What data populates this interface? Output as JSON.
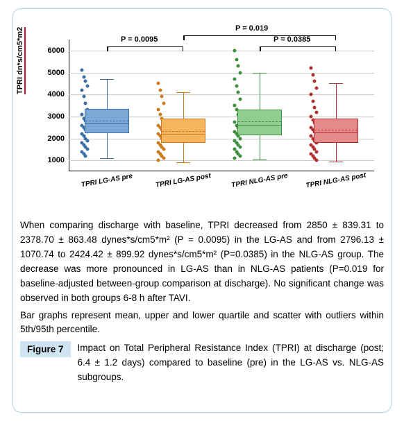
{
  "chart": {
    "type": "boxplot",
    "y_axis": {
      "label": "TPRI dn*s/cm5*m2",
      "min": 500,
      "max": 6500,
      "ticks": [
        1000,
        2000,
        3000,
        4000,
        5000,
        6000
      ],
      "grid_color": "#cccccc"
    },
    "p_values": [
      {
        "label": "P = 0.0095",
        "span": [
          0,
          1
        ],
        "y": 6200
      },
      {
        "label": "P = 0.019",
        "span": [
          1,
          3
        ],
        "y": 6700
      },
      {
        "label": "P = 0.0385",
        "span": [
          2,
          3
        ],
        "y": 6200
      }
    ],
    "series": [
      {
        "label": "TPRI LG-AS pre",
        "fill": "#7ba9d6",
        "stroke": "#3a6ea5",
        "q1": 2250,
        "median": 2700,
        "mean": 2850,
        "q3": 3350,
        "whisker_low": 1100,
        "whisker_high": 4700,
        "scatter": [
          5100,
          4800,
          4600,
          4400,
          4200,
          3900,
          3600,
          3300,
          3100,
          2900,
          2800,
          2700,
          2600,
          2500,
          2400,
          2300,
          2200,
          2100,
          2000,
          1900,
          1800,
          1700,
          1600,
          1500,
          1400,
          1300,
          1200
        ]
      },
      {
        "label": "TPRI LG-AS post",
        "fill": "#f5b45e",
        "stroke": "#cc7a1f",
        "q1": 1800,
        "median": 2250,
        "mean": 2378,
        "q3": 2900,
        "whisker_low": 900,
        "whisker_high": 4100,
        "scatter": [
          4500,
          4200,
          3900,
          3600,
          3300,
          3100,
          2900,
          2750,
          2600,
          2500,
          2400,
          2300,
          2200,
          2100,
          2000,
          1900,
          1800,
          1700,
          1600,
          1500,
          1400,
          1300,
          1200,
          1100,
          1000
        ]
      },
      {
        "label": "TPRI NLG-AS pre",
        "fill": "#8fce8f",
        "stroke": "#3d8f3d",
        "q1": 2150,
        "median": 2650,
        "mean": 2796,
        "q3": 3300,
        "whisker_low": 1050,
        "whisker_high": 5000,
        "scatter": [
          6000,
          5600,
          5300,
          5000,
          4700,
          4400,
          4100,
          3800,
          3500,
          3300,
          3100,
          2900,
          2750,
          2600,
          2500,
          2400,
          2300,
          2200,
          2100,
          2000,
          1900,
          1800,
          1700,
          1600,
          1500,
          1400,
          1300,
          1200,
          1100
        ]
      },
      {
        "label": "TPRI NLG-AS post",
        "fill": "#e58a8a",
        "stroke": "#b03030",
        "q1": 1800,
        "median": 2300,
        "mean": 2424,
        "q3": 2900,
        "whisker_low": 950,
        "whisker_high": 4500,
        "scatter": [
          5200,
          4900,
          4600,
          4300,
          4000,
          3700,
          3400,
          3200,
          3000,
          2850,
          2700,
          2600,
          2500,
          2400,
          2300,
          2200,
          2100,
          2000,
          1900,
          1800,
          1700,
          1600,
          1500,
          1400,
          1300,
          1200,
          1100,
          1000
        ]
      }
    ]
  },
  "caption": {
    "body1": "When comparing discharge with baseline, TPRI decreased from 2850 ± 839.31 to 2378.70 ± 863.48 dynes*s/cm5*m² (P = 0.0095) in the LG-AS and from 2796.13 ± 1070.74 to 2424.42 ± 899.92 dynes*s/cm5*m²  (P=0.0385) in the NLG-AS group. The decrease was more pronounced in LG-AS than in NLG-AS patients (P=0.019 for baseline-adjusted between-group comparison at discharge). No significant change was observed in both groups 6-8 h after TAVI.",
    "body2": "Bar graphs represent mean, upper and lower quartile and scatter with outliers within 5th/95th percentile.",
    "figure_label": "Figure 7",
    "figure_desc": "Impact on Total Peripheral Resistance Index (TPRI) at discharge (post; 6.4 ± 1.2 days) compared to baseline (pre) in the LG-AS vs. NLG-AS subgroups."
  }
}
